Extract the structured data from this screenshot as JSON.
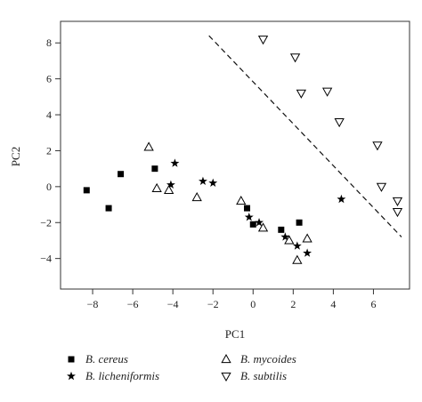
{
  "chart_data": {
    "type": "scatter",
    "xlabel": "PC1",
    "ylabel": "PC2",
    "xlim": [
      -9.6,
      7.8
    ],
    "ylim": [
      -5.7,
      9.2
    ],
    "xticks": [
      -8,
      -6,
      -4,
      -2,
      0,
      2,
      4,
      6
    ],
    "xtick_labels": [
      "−8",
      "−6",
      "−4",
      "−2",
      "0",
      "2",
      "4",
      "6"
    ],
    "yticks": [
      -4,
      -2,
      0,
      2,
      4,
      6,
      8
    ],
    "ytick_labels": [
      "−4",
      "−2",
      "0",
      "2",
      "4",
      "6",
      "8"
    ],
    "grid": false,
    "legend_position": "bottom",
    "series": [
      {
        "name": "B. cereus",
        "marker": "filled-square",
        "color": "#000000",
        "points": [
          [
            -8.3,
            -0.2
          ],
          [
            -7.2,
            -1.2
          ],
          [
            -6.6,
            0.7
          ],
          [
            -4.9,
            1.0
          ],
          [
            -0.3,
            -1.2
          ],
          [
            0.0,
            -2.1
          ],
          [
            1.4,
            -2.4
          ],
          [
            2.3,
            -2.0
          ]
        ]
      },
      {
        "name": "B. licheniformis",
        "marker": "filled-star",
        "color": "#000000",
        "points": [
          [
            -3.9,
            1.3
          ],
          [
            -4.1,
            0.1
          ],
          [
            -2.5,
            0.3
          ],
          [
            -2.0,
            0.2
          ],
          [
            -0.2,
            -1.7
          ],
          [
            0.3,
            -2.0
          ],
          [
            1.6,
            -2.8
          ],
          [
            2.2,
            -3.3
          ],
          [
            2.7,
            -3.7
          ],
          [
            4.4,
            -0.7
          ]
        ]
      },
      {
        "name": "B. mycoides",
        "marker": "open-triangle-up",
        "color": "#000000",
        "points": [
          [
            -5.2,
            2.2
          ],
          [
            -4.8,
            -0.1
          ],
          [
            -4.2,
            -0.2
          ],
          [
            -2.8,
            -0.6
          ],
          [
            -0.6,
            -0.8
          ],
          [
            0.5,
            -2.3
          ],
          [
            1.8,
            -3.0
          ],
          [
            2.7,
            -2.9
          ],
          [
            2.2,
            -4.1
          ]
        ]
      },
      {
        "name": "B. subtilis",
        "marker": "open-triangle-down",
        "color": "#000000",
        "points": [
          [
            0.5,
            8.2
          ],
          [
            2.1,
            7.2
          ],
          [
            2.4,
            5.2
          ],
          [
            3.7,
            5.3
          ],
          [
            4.3,
            3.6
          ],
          [
            6.2,
            2.3
          ],
          [
            6.4,
            0.0
          ],
          [
            7.2,
            -0.8
          ],
          [
            7.2,
            -1.4
          ]
        ]
      }
    ],
    "separator_line": {
      "style": "dashed",
      "x": [
        -2.2,
        7.4
      ],
      "y": [
        8.4,
        -2.8
      ]
    }
  }
}
